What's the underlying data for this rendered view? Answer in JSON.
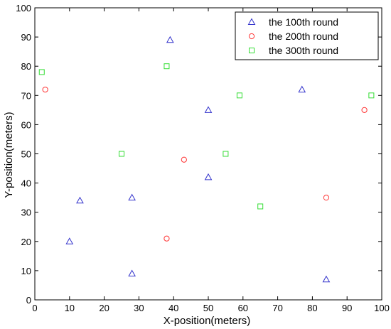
{
  "chart_data": {
    "type": "scatter",
    "xlabel": "X-position(meters)",
    "ylabel": "Y-position(meters)",
    "xlim": [
      0,
      100
    ],
    "ylim": [
      0,
      100
    ],
    "xticks": [
      0,
      10,
      20,
      30,
      40,
      50,
      60,
      70,
      80,
      90,
      100
    ],
    "yticks": [
      0,
      10,
      20,
      30,
      40,
      50,
      60,
      70,
      80,
      90,
      100
    ],
    "grid": false,
    "legend_position": "top-right",
    "series": [
      {
        "name": "the 100th round",
        "marker": "triangle",
        "color": "#3333cc",
        "points": [
          [
            39,
            89
          ],
          [
            77,
            72
          ],
          [
            50,
            65
          ],
          [
            13,
            34
          ],
          [
            28,
            35
          ],
          [
            50,
            42
          ],
          [
            10,
            20
          ],
          [
            28,
            9
          ],
          [
            84,
            7
          ]
        ]
      },
      {
        "name": "the 200th round",
        "marker": "circle",
        "color": "#ff3333",
        "points": [
          [
            3,
            72
          ],
          [
            95,
            65
          ],
          [
            43,
            48
          ],
          [
            84,
            35
          ],
          [
            38,
            21
          ]
        ]
      },
      {
        "name": "the 300th round",
        "marker": "square",
        "color": "#33dd33",
        "points": [
          [
            2,
            78
          ],
          [
            38,
            80
          ],
          [
            59,
            70
          ],
          [
            97,
            70
          ],
          [
            25,
            50
          ],
          [
            55,
            50
          ],
          [
            65,
            32
          ]
        ]
      }
    ]
  }
}
